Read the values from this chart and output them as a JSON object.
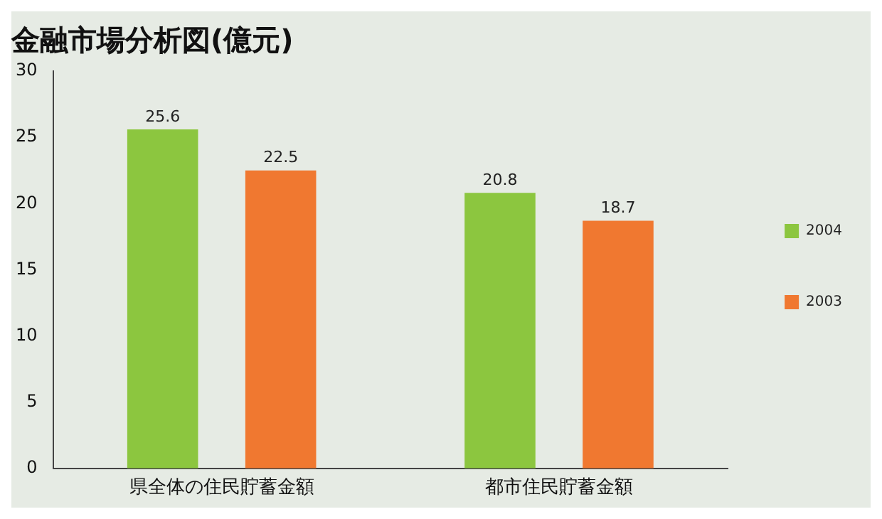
{
  "chart_data": {
    "type": "bar",
    "title": "金融市場分析図(億元)",
    "categories": [
      "県全体の住民貯蓄金額",
      "都市住民貯蓄金額"
    ],
    "series": [
      {
        "name": "2004",
        "color": "#8cc63f",
        "values": [
          25.6,
          20.8
        ]
      },
      {
        "name": "2003",
        "color": "#f07830",
        "values": [
          22.5,
          18.7
        ]
      }
    ],
    "ylim": [
      0,
      30
    ],
    "yticks": [
      0,
      5,
      10,
      15,
      20,
      25,
      30
    ],
    "grid": false,
    "legend": "right",
    "data_labels": true
  }
}
